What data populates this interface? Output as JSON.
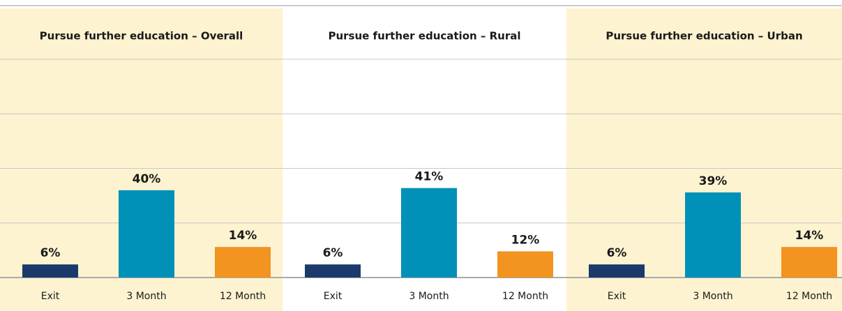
{
  "chart_data": [
    {
      "type": "bar",
      "title": "Pursue further education – Overall",
      "categories": [
        "Exit",
        "3 Month",
        "12 Month"
      ],
      "values": [
        6,
        40,
        14
      ],
      "value_labels": [
        "6%",
        "40%",
        "14%"
      ],
      "colors": [
        "#1b3a6b",
        "#0090b8",
        "#f39320"
      ],
      "background": "#fdf3d0",
      "ylim": [
        0,
        100
      ],
      "yticks": [
        0,
        25,
        50,
        75,
        100
      ],
      "grid": true
    },
    {
      "type": "bar",
      "title": "Pursue further education – Rural",
      "categories": [
        "Exit",
        "3 Month",
        "12 Month"
      ],
      "values": [
        6,
        41,
        12
      ],
      "value_labels": [
        "6%",
        "41%",
        "12%"
      ],
      "colors": [
        "#1b3a6b",
        "#0090b8",
        "#f39320"
      ],
      "background": "#ffffff",
      "ylim": [
        0,
        100
      ],
      "yticks": [
        0,
        25,
        50,
        75,
        100
      ],
      "grid": true
    },
    {
      "type": "bar",
      "title": "Pursue further education – Urban",
      "categories": [
        "Exit",
        "3 Month",
        "12 Month"
      ],
      "values": [
        6,
        39,
        14
      ],
      "value_labels": [
        "6%",
        "39%",
        "14%"
      ],
      "colors": [
        "#1b3a6b",
        "#0090b8",
        "#f39320"
      ],
      "background": "#fdf3d0",
      "ylim": [
        0,
        100
      ],
      "yticks": [
        0,
        25,
        50,
        75,
        100
      ],
      "grid": true
    }
  ]
}
